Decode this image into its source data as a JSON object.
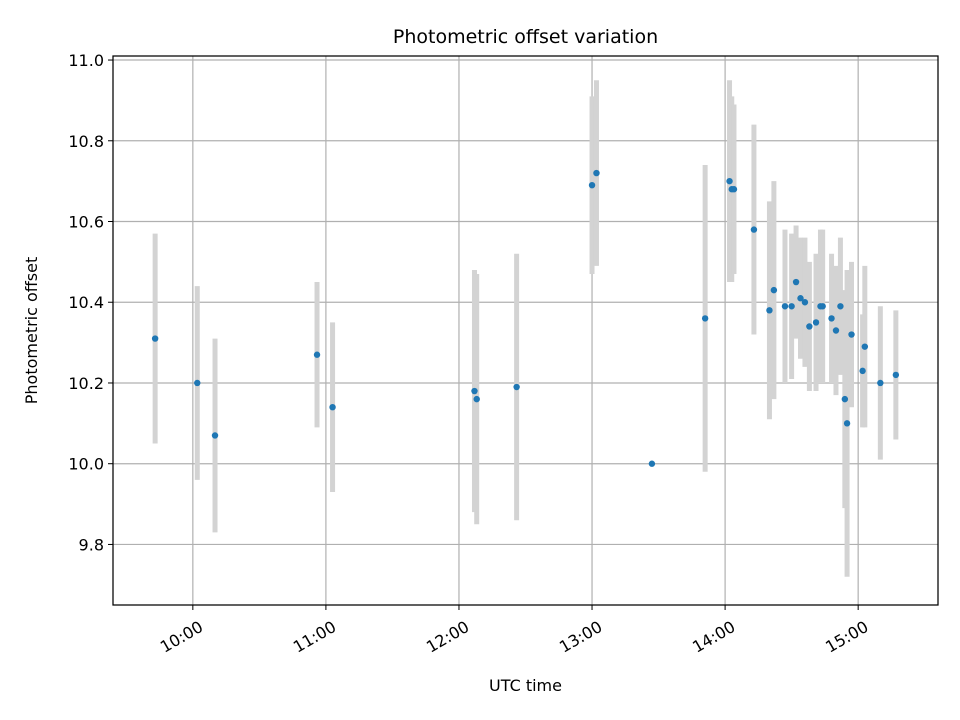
{
  "chart_data": {
    "type": "scatter",
    "title": "Photometric offset variation",
    "xlabel": "UTC time",
    "ylabel": "Photometric offset",
    "x_unit": "UTC hh:mm",
    "xlim": [
      "09:24",
      "15:36"
    ],
    "ylim": [
      9.65,
      11.01
    ],
    "x_ticks": [
      "10:00",
      "11:00",
      "12:00",
      "13:00",
      "14:00",
      "15:00"
    ],
    "y_ticks": [
      9.8,
      10.0,
      10.2,
      10.4,
      10.6,
      10.8,
      11.0
    ],
    "y_tick_labels": [
      "9.8",
      "10.0",
      "10.2",
      "10.4",
      "10.6",
      "10.8",
      "11.0"
    ],
    "grid": true,
    "point_color": "#1f77b4",
    "errorbar_color": "#d3d3d3",
    "points": [
      {
        "x": "09:43",
        "y": 10.31,
        "err": 0.26
      },
      {
        "x": "10:02",
        "y": 10.2,
        "err": 0.24
      },
      {
        "x": "10:10",
        "y": 10.07,
        "err": 0.24
      },
      {
        "x": "10:56",
        "y": 10.27,
        "err": 0.18
      },
      {
        "x": "11:03",
        "y": 10.14,
        "err": 0.21
      },
      {
        "x": "12:07",
        "y": 10.18,
        "err": 0.3
      },
      {
        "x": "12:08",
        "y": 10.16,
        "err": 0.31
      },
      {
        "x": "12:26",
        "y": 10.19,
        "err": 0.33
      },
      {
        "x": "13:00",
        "y": 10.69,
        "err": 0.22
      },
      {
        "x": "13:02",
        "y": 10.72,
        "err": 0.23
      },
      {
        "x": "13:27",
        "y": 10.0,
        "err": 0.0
      },
      {
        "x": "13:51",
        "y": 10.36,
        "err": 0.38
      },
      {
        "x": "14:02",
        "y": 10.7,
        "err": 0.25
      },
      {
        "x": "14:03",
        "y": 10.68,
        "err": 0.23
      },
      {
        "x": "14:04",
        "y": 10.68,
        "err": 0.21
      },
      {
        "x": "14:13",
        "y": 10.58,
        "err": 0.26
      },
      {
        "x": "14:20",
        "y": 10.38,
        "err": 0.27
      },
      {
        "x": "14:22",
        "y": 10.43,
        "err": 0.27
      },
      {
        "x": "14:27",
        "y": 10.39,
        "err": 0.19
      },
      {
        "x": "14:30",
        "y": 10.39,
        "err": 0.18
      },
      {
        "x": "14:32",
        "y": 10.45,
        "err": 0.14
      },
      {
        "x": "14:34",
        "y": 10.41,
        "err": 0.15
      },
      {
        "x": "14:36",
        "y": 10.4,
        "err": 0.16
      },
      {
        "x": "14:38",
        "y": 10.34,
        "err": 0.16
      },
      {
        "x": "14:41",
        "y": 10.35,
        "err": 0.17
      },
      {
        "x": "14:43",
        "y": 10.39,
        "err": 0.19
      },
      {
        "x": "14:44",
        "y": 10.39,
        "err": 0.19
      },
      {
        "x": "14:48",
        "y": 10.36,
        "err": 0.16
      },
      {
        "x": "14:50",
        "y": 10.33,
        "err": 0.16
      },
      {
        "x": "14:52",
        "y": 10.39,
        "err": 0.17
      },
      {
        "x": "14:54",
        "y": 10.16,
        "err": 0.27
      },
      {
        "x": "14:55",
        "y": 10.1,
        "err": 0.38
      },
      {
        "x": "14:57",
        "y": 10.32,
        "err": 0.18
      },
      {
        "x": "15:02",
        "y": 10.23,
        "err": 0.14
      },
      {
        "x": "15:03",
        "y": 10.29,
        "err": 0.2
      },
      {
        "x": "15:10",
        "y": 10.2,
        "err": 0.19
      },
      {
        "x": "15:17",
        "y": 10.22,
        "err": 0.16
      }
    ]
  }
}
